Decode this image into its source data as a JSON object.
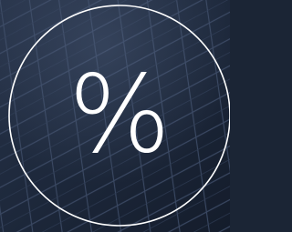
{
  "icon": {
    "symbol": "%"
  }
}
